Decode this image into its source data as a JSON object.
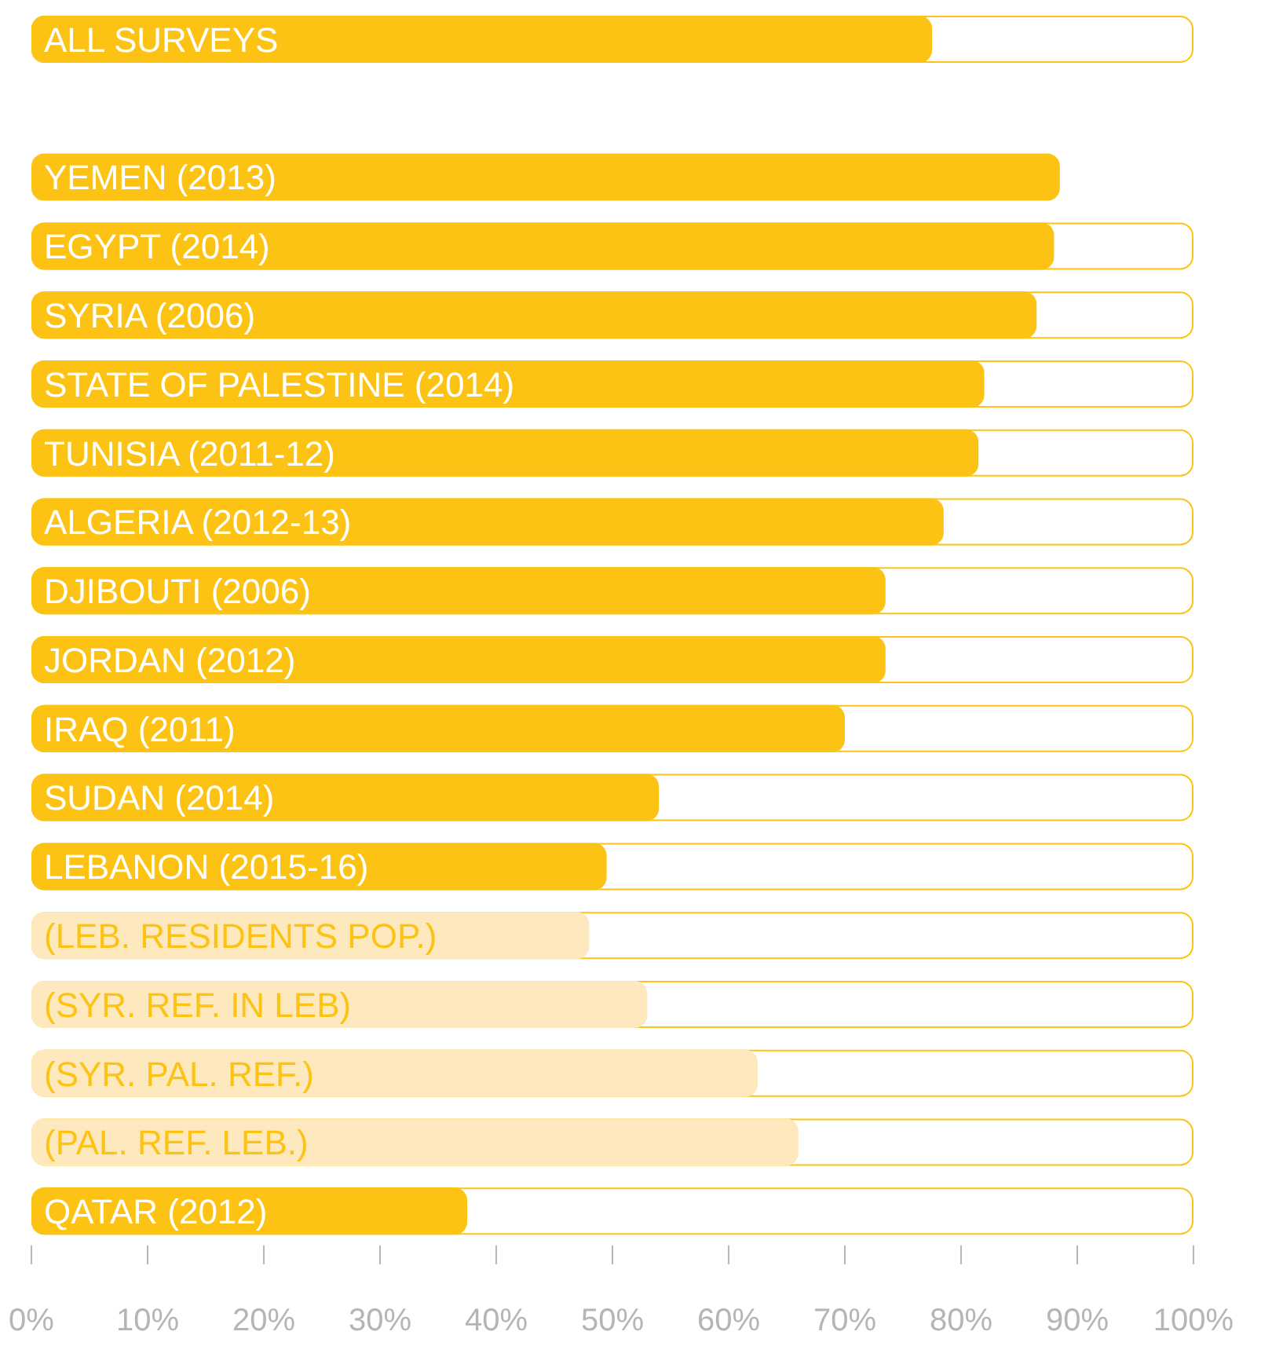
{
  "chart_data": {
    "type": "bar",
    "orientation": "horizontal",
    "categories": [
      "ALL SURVEYS",
      null,
      "YEMEN (2013)",
      "EGYPT (2014)",
      "SYRIA (2006)",
      "STATE OF PALESTINE (2014)",
      "TUNISIA (2011-12)",
      "ALGERIA (2012-13)",
      "DJIBOUTI (2006)",
      "JORDAN (2012)",
      "IRAQ (2011)",
      "SUDAN (2014)",
      "LEBANON (2015-16)",
      "(LEB. RESIDENTS POP.)",
      "(SYR. REF. IN LEB)",
      "(SYR. PAL. REF.)",
      "(PAL. REF. LEB.)",
      "QATAR (2012)"
    ],
    "values": [
      77.5,
      null,
      88.5,
      88,
      86.5,
      82,
      81.5,
      78.5,
      73.5,
      73.5,
      70,
      54,
      49.5,
      48,
      53,
      62.5,
      66,
      37.5
    ],
    "colors": [
      "#fcc314",
      null,
      "#fcc314",
      "#fcc314",
      "#fcc314",
      "#fcc314",
      "#fcc314",
      "#fcc314",
      "#fcc314",
      "#fcc314",
      "#fcc314",
      "#fcc314",
      "#fcc314",
      "#fde9bd",
      "#fde9bd",
      "#fde9bd",
      "#fde9bd",
      "#fcc314"
    ],
    "xlim": [
      0,
      100
    ],
    "xticks": [
      {
        "value": 0,
        "label": "0%"
      },
      {
        "value": 10,
        "label": "10%"
      },
      {
        "value": 20,
        "label": "20%"
      },
      {
        "value": 30,
        "label": "30%"
      },
      {
        "value": 40,
        "label": "40%"
      },
      {
        "value": 50,
        "label": "50%"
      },
      {
        "value": 60,
        "label": "60%"
      },
      {
        "value": 70,
        "label": "70%"
      },
      {
        "value": 80,
        "label": "80%"
      },
      {
        "value": 90,
        "label": "90%"
      },
      {
        "value": 100,
        "label": "100%"
      }
    ],
    "grid": false
  }
}
